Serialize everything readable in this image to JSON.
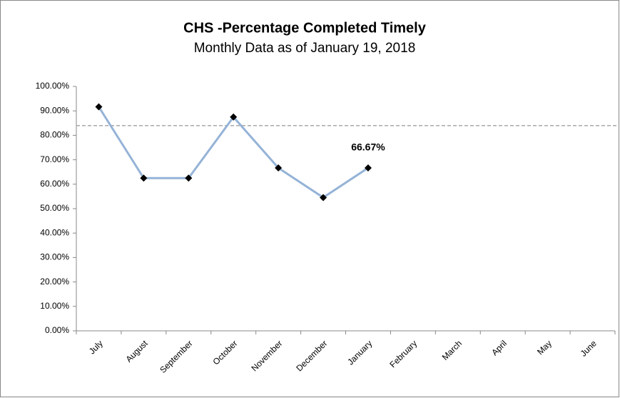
{
  "chart_data": {
    "type": "line",
    "title": "CHS -Percentage Completed Timely",
    "subtitle": "Monthly Data as of January 19, 2018",
    "categories": [
      "July",
      "August",
      "September",
      "October",
      "November",
      "December",
      "January",
      "February",
      "March",
      "April",
      "May",
      "June"
    ],
    "values": [
      91.67,
      62.5,
      62.5,
      87.5,
      66.67,
      54.55,
      66.67,
      null,
      null,
      null,
      null,
      null
    ],
    "value_labels": [
      null,
      null,
      null,
      null,
      null,
      null,
      "66.67%",
      null,
      null,
      null,
      null,
      null
    ],
    "color": "#95b3d7",
    "marker_color": "#000000",
    "reference_line": {
      "value": 84,
      "color": "#aaaaaa"
    },
    "ylim": [
      0,
      100
    ],
    "yticks": [
      {
        "value": 0,
        "label": "0.00%"
      },
      {
        "value": 10,
        "label": "10.00%"
      },
      {
        "value": 20,
        "label": "20.00%"
      },
      {
        "value": 30,
        "label": "30.00%"
      },
      {
        "value": 40,
        "label": "40.00%"
      },
      {
        "value": 50,
        "label": "50.00%"
      },
      {
        "value": 60,
        "label": "60.00%"
      },
      {
        "value": 70,
        "label": "70.00%"
      },
      {
        "value": 80,
        "label": "80.00%"
      },
      {
        "value": 90,
        "label": "90.00%"
      },
      {
        "value": 100,
        "label": "100.00%"
      }
    ],
    "grid": false
  }
}
